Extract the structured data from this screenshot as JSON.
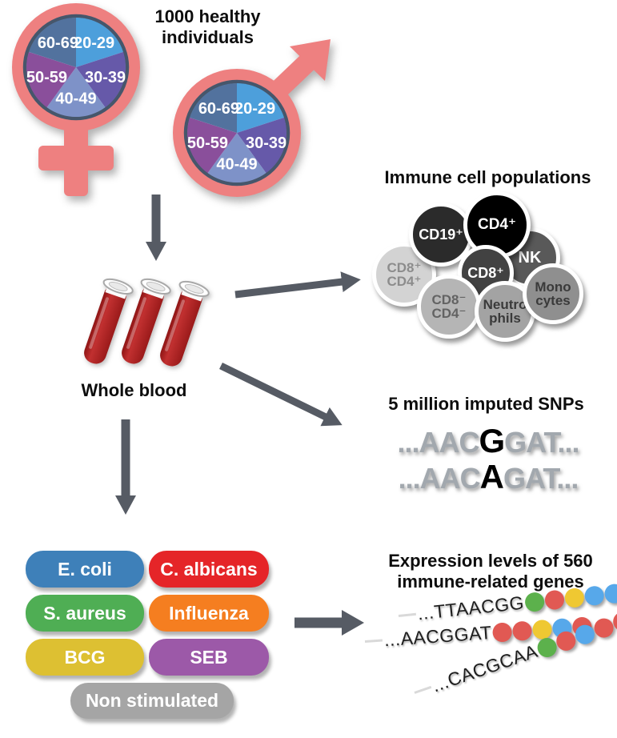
{
  "header": {
    "title": "1000 healthy individuals"
  },
  "age_pie": {
    "slices": [
      {
        "label": "20-29",
        "color": "#4d9fdb"
      },
      {
        "label": "30-39",
        "color": "#6659a9"
      },
      {
        "label": "40-49",
        "color": "#7e92c8"
      },
      {
        "label": "50-59",
        "color": "#8a4f9b"
      },
      {
        "label": "60-69",
        "color": "#52729e"
      }
    ]
  },
  "whole_blood": {
    "label": "Whole blood"
  },
  "immune_cells": {
    "title": "Immune cell populations",
    "cells": [
      {
        "label": "CD8⁺\nCD4⁺",
        "bg": "#d3d3d3",
        "fg": "#8c8c8c"
      },
      {
        "label": "CD19⁺",
        "bg": "#2b2b2b",
        "fg": "#ffffff"
      },
      {
        "label": "NK",
        "bg": "#595959",
        "fg": "#ffffff"
      },
      {
        "label": "CD4⁺",
        "bg": "#000000",
        "fg": "#ffffff"
      },
      {
        "label": "CD8⁺",
        "bg": "#424242",
        "fg": "#ffffff"
      },
      {
        "label": "CD8⁻\nCD4⁻",
        "bg": "#b5b5b5",
        "fg": "#636363"
      },
      {
        "label": "Neutro\nphils",
        "bg": "#a3a3a3",
        "fg": "#3a3a3a"
      },
      {
        "label": "Mono\ncytes",
        "bg": "#8f8f8f",
        "fg": "#3a3a3a"
      }
    ]
  },
  "snps": {
    "title": "5 million imputed SNPs",
    "sequences": [
      {
        "prefix": "...AAC",
        "variant": "G",
        "suffix": "GAT..."
      },
      {
        "prefix": "...AAC",
        "variant": "A",
        "suffix": "GAT..."
      }
    ]
  },
  "stimuli": {
    "items": [
      {
        "label": "E. coli",
        "color": "#3e80b9"
      },
      {
        "label": "C. albicans",
        "color": "#e52528"
      },
      {
        "label": "S. aureus",
        "color": "#4fae54"
      },
      {
        "label": "Influenza",
        "color": "#f57e20"
      },
      {
        "label": "BCG",
        "color": "#ddc032"
      },
      {
        "label": "SEB",
        "color": "#9c59a8"
      },
      {
        "label": "Non stimulated",
        "color": "#a5a5a5"
      }
    ]
  },
  "expression": {
    "title": "Expression levels of 560 immune-related genes",
    "strands": [
      {
        "seq": "...TTAACGG",
        "dots": [
          "#5cb14c",
          "#e15953",
          "#efc832",
          "#57a8ea",
          "#57a8ea"
        ]
      },
      {
        "seq": "...AACGGAT",
        "dots": [
          "#e15953",
          "#e15953",
          "#efc832",
          "#57a8ea",
          "#e15953"
        ]
      },
      {
        "seq": "...CACGCAA",
        "dots": [
          "#5cb14c",
          "#e15953",
          "#57a8ea",
          "#e15953",
          "#e15953"
        ]
      }
    ]
  },
  "colors": {
    "symbol_pink": "#ee8080",
    "arrow_gray": "#565b64",
    "blood_red": "#b32222"
  }
}
